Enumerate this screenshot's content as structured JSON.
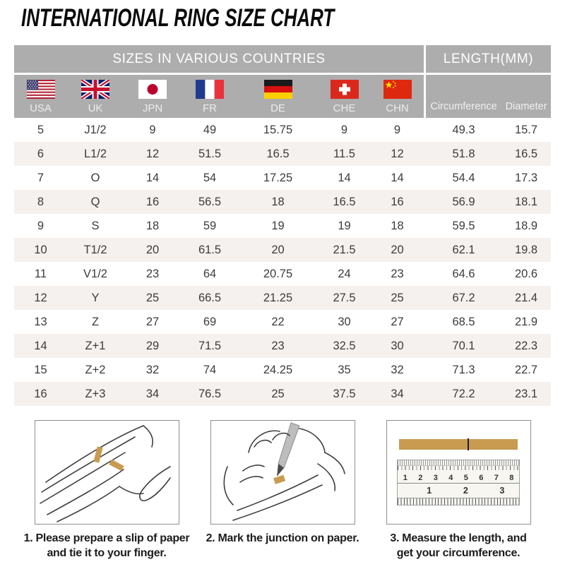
{
  "title": "INTERNATIONAL RING SIZE CHART",
  "chart_data": {
    "type": "table",
    "title": "INTERNATIONAL RING SIZE CHART",
    "column_groups": [
      {
        "label": "SIZES IN VARIOUS COUNTRIES",
        "span": 7
      },
      {
        "label": "LENGTH(MM)",
        "span": 2
      }
    ],
    "columns": [
      {
        "label": "USA",
        "flag_icon": "usa-flag"
      },
      {
        "label": "UK",
        "flag_icon": "uk-flag"
      },
      {
        "label": "JPN",
        "flag_icon": "japan-flag"
      },
      {
        "label": "FR",
        "flag_icon": "france-flag"
      },
      {
        "label": "DE",
        "flag_icon": "germany-flag"
      },
      {
        "label": "CHE",
        "flag_icon": "switzerland-flag"
      },
      {
        "label": "CHN",
        "flag_icon": "china-flag"
      },
      {
        "label": "Circumference"
      },
      {
        "label": "Diameter"
      }
    ],
    "rows": [
      [
        "5",
        "J1/2",
        "9",
        "49",
        "15.75",
        "9",
        "9",
        "49.3",
        "15.7"
      ],
      [
        "6",
        "L1/2",
        "12",
        "51.5",
        "16.5",
        "11.5",
        "12",
        "51.8",
        "16.5"
      ],
      [
        "7",
        "O",
        "14",
        "54",
        "17.25",
        "14",
        "14",
        "54.4",
        "17.3"
      ],
      [
        "8",
        "Q",
        "16",
        "56.5",
        "18",
        "16.5",
        "16",
        "56.9",
        "18.1"
      ],
      [
        "9",
        "S",
        "18",
        "59",
        "19",
        "19",
        "18",
        "59.5",
        "18.9"
      ],
      [
        "10",
        "T1/2",
        "20",
        "61.5",
        "20",
        "21.5",
        "20",
        "62.1",
        "19.8"
      ],
      [
        "11",
        "V1/2",
        "23",
        "64",
        "20.75",
        "24",
        "23",
        "64.6",
        "20.6"
      ],
      [
        "12",
        "Y",
        "25",
        "66.5",
        "21.25",
        "27.5",
        "25",
        "67.2",
        "21.4"
      ],
      [
        "13",
        "Z",
        "27",
        "69",
        "22",
        "30",
        "27",
        "68.5",
        "21.9"
      ],
      [
        "14",
        "Z+1",
        "29",
        "71.5",
        "23",
        "32.5",
        "30",
        "70.1",
        "22.3"
      ],
      [
        "15",
        "Z+2",
        "32",
        "74",
        "24.25",
        "35",
        "32",
        "71.3",
        "22.7"
      ],
      [
        "16",
        "Z+3",
        "34",
        "76.5",
        "25",
        "37.5",
        "34",
        "72.2",
        "23.1"
      ]
    ]
  },
  "instructions": [
    {
      "illustration": "hand-with-paper-slip",
      "caption_line1": "1. Please prepare a slip of paper",
      "caption_line2": "and tie it to your finger."
    },
    {
      "illustration": "pen-marking-junction",
      "caption_line1": "2. Mark the junction on paper.",
      "caption_line2": ""
    },
    {
      "illustration": "ruler-measuring-strip",
      "caption_line1": "3. Measure the length, and",
      "caption_line2": "get your circumference.",
      "ruler_cm_labels": [
        "1",
        "2",
        "3",
        "4",
        "5",
        "6",
        "7",
        "8"
      ],
      "ruler_inch_labels": [
        "1",
        "2",
        "3"
      ]
    }
  ],
  "colors": {
    "header_gray": "#ADADAD",
    "header_text": "#FFFFFF",
    "row_alt": "#F5F1EE",
    "data_text": "#3C3C3C",
    "paper_strip": "#C89B51",
    "box_border": "#8F8F8F"
  }
}
